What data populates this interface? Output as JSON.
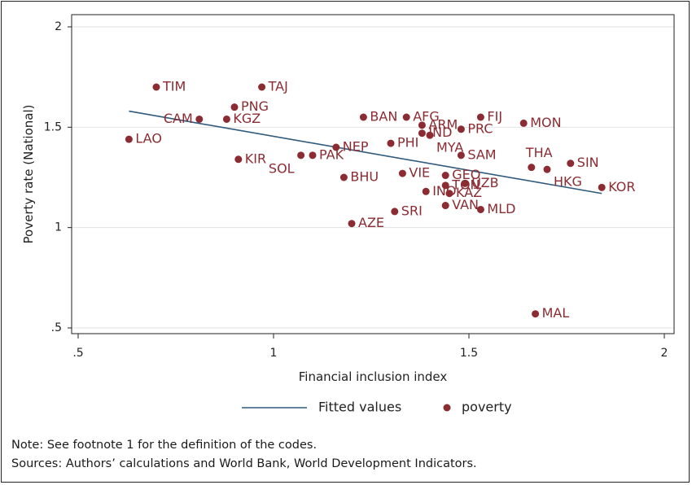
{
  "chart_data": {
    "type": "scatter",
    "xlabel": "Financial inclusion index",
    "ylabel": "Poverty rate (National)",
    "xlim": [
      0.5,
      2
    ],
    "ylim": [
      0.5,
      2
    ],
    "xticks": [
      0.5,
      1,
      1.5,
      2
    ],
    "xtick_labels": [
      ".5",
      "1",
      "1.5",
      "2"
    ],
    "yticks": [
      0.5,
      1,
      1.5,
      2
    ],
    "ytick_labels": [
      ".5",
      "1",
      "1.5",
      "2"
    ],
    "grid": "horizontal",
    "legend_position": "bottom",
    "colors": {
      "points": "#8b2b32",
      "fitted_line": "#2f5a7c",
      "grid": "#e2e2e2"
    },
    "series": [
      {
        "name": "poverty",
        "points": [
          {
            "label": "TIM",
            "x": 0.7,
            "y": 1.7,
            "label_pos": "right"
          },
          {
            "label": "TAJ",
            "x": 0.97,
            "y": 1.7,
            "label_pos": "right"
          },
          {
            "label": "PNG",
            "x": 0.9,
            "y": 1.6,
            "label_pos": "right"
          },
          {
            "label": "CAM",
            "x": 0.81,
            "y": 1.54,
            "label_pos": "left"
          },
          {
            "label": "KGZ",
            "x": 0.88,
            "y": 1.54,
            "label_pos": "right"
          },
          {
            "label": "LAO",
            "x": 0.63,
            "y": 1.44,
            "label_pos": "right"
          },
          {
            "label": "KIR",
            "x": 0.91,
            "y": 1.34,
            "label_pos": "right"
          },
          {
            "label": "SOL",
            "x": 1.07,
            "y": 1.36,
            "label_pos": "below-left"
          },
          {
            "label": "PAK",
            "x": 1.1,
            "y": 1.36,
            "label_pos": "right"
          },
          {
            "label": "NEP",
            "x": 1.16,
            "y": 1.4,
            "label_pos": "right"
          },
          {
            "label": "BHU",
            "x": 1.18,
            "y": 1.25,
            "label_pos": "right"
          },
          {
            "label": "AZE",
            "x": 1.2,
            "y": 1.02,
            "label_pos": "right"
          },
          {
            "label": "BAN",
            "x": 1.23,
            "y": 1.55,
            "label_pos": "right"
          },
          {
            "label": "AFG",
            "x": 1.34,
            "y": 1.55,
            "label_pos": "right"
          },
          {
            "label": "ARM",
            "x": 1.38,
            "y": 1.51,
            "label_pos": "right"
          },
          {
            "label": "IND",
            "x": 1.38,
            "y": 1.47,
            "label_pos": "right"
          },
          {
            "label": "MYA",
            "x": 1.4,
            "y": 1.46,
            "label_pos": "below-right"
          },
          {
            "label": "PHI",
            "x": 1.3,
            "y": 1.42,
            "label_pos": "right"
          },
          {
            "label": "VIE",
            "x": 1.33,
            "y": 1.27,
            "label_pos": "right"
          },
          {
            "label": "SRI",
            "x": 1.31,
            "y": 1.08,
            "label_pos": "right"
          },
          {
            "label": "PRC",
            "x": 1.48,
            "y": 1.49,
            "label_pos": "right"
          },
          {
            "label": "FIJ",
            "x": 1.53,
            "y": 1.55,
            "label_pos": "right"
          },
          {
            "label": "SAM",
            "x": 1.48,
            "y": 1.36,
            "label_pos": "right"
          },
          {
            "label": "GEO",
            "x": 1.44,
            "y": 1.26,
            "label_pos": "right"
          },
          {
            "label": "TON",
            "x": 1.44,
            "y": 1.21,
            "label_pos": "right"
          },
          {
            "label": "UZB",
            "x": 1.49,
            "y": 1.22,
            "label_pos": "right"
          },
          {
            "label": "INO",
            "x": 1.39,
            "y": 1.18,
            "label_pos": "right"
          },
          {
            "label": "KAZ",
            "x": 1.45,
            "y": 1.17,
            "label_pos": "right"
          },
          {
            "label": "VAN",
            "x": 1.44,
            "y": 1.11,
            "label_pos": "right"
          },
          {
            "label": "MLD",
            "x": 1.53,
            "y": 1.09,
            "label_pos": "right"
          },
          {
            "label": "MON",
            "x": 1.64,
            "y": 1.52,
            "label_pos": "right"
          },
          {
            "label": "THA",
            "x": 1.66,
            "y": 1.3,
            "label_pos": "above-left"
          },
          {
            "label": "HKG",
            "x": 1.7,
            "y": 1.29,
            "label_pos": "below-right"
          },
          {
            "label": "SIN",
            "x": 1.76,
            "y": 1.32,
            "label_pos": "right"
          },
          {
            "label": "KOR",
            "x": 1.84,
            "y": 1.2,
            "label_pos": "right"
          },
          {
            "label": "MAL",
            "x": 1.67,
            "y": 0.57,
            "label_pos": "right"
          }
        ]
      },
      {
        "name": "Fitted values",
        "type": "line",
        "x": [
          0.63,
          1.84
        ],
        "y": [
          1.58,
          1.17
        ]
      }
    ],
    "legend": [
      "Fitted values",
      "poverty"
    ]
  },
  "notes": {
    "line1": "Note: See footnote 1 for the definition of the codes.",
    "line2": "Sources: Authors’ calculations and World Bank, World Development Indicators."
  }
}
